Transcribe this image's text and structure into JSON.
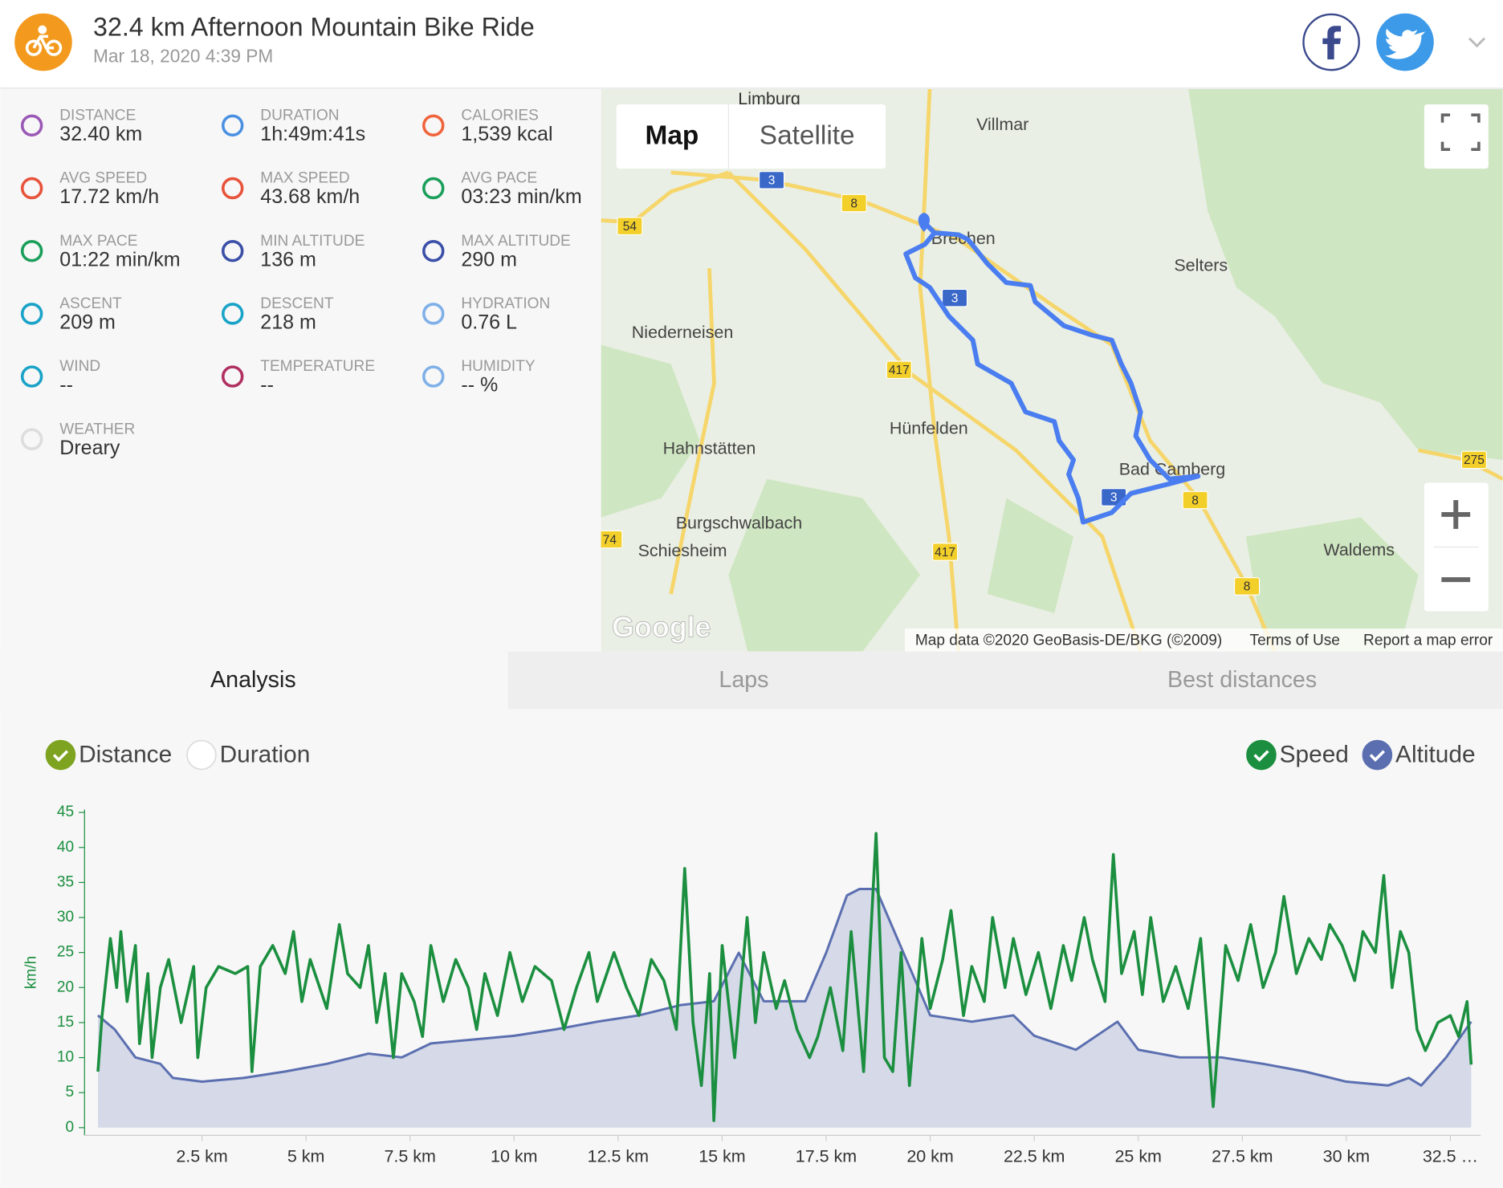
{
  "header": {
    "title": "32.4 km Afternoon Mountain Bike Ride",
    "date": "Mar 18, 2020 4:39 PM"
  },
  "stats": [
    {
      "label": "DISTANCE",
      "value": "32.40 km"
    },
    {
      "label": "DURATION",
      "value": "1h:49m:41s"
    },
    {
      "label": "CALORIES",
      "value": "1,539 kcal"
    },
    {
      "label": "AVG SPEED",
      "value": "17.72 km/h"
    },
    {
      "label": "MAX SPEED",
      "value": "43.68 km/h"
    },
    {
      "label": "AVG PACE",
      "value": "03:23 min/km"
    },
    {
      "label": "MAX PACE",
      "value": "01:22 min/km"
    },
    {
      "label": "MIN ALTITUDE",
      "value": "136 m"
    },
    {
      "label": "MAX ALTITUDE",
      "value": "290 m"
    },
    {
      "label": "ASCENT",
      "value": "209 m"
    },
    {
      "label": "DESCENT",
      "value": "218 m"
    },
    {
      "label": "HYDRATION",
      "value": "0.76 L"
    },
    {
      "label": "WIND",
      "value": "--"
    },
    {
      "label": "TEMPERATURE",
      "value": "--"
    },
    {
      "label": "HUMIDITY",
      "value": "-- %"
    },
    {
      "label": "WEATHER",
      "value": "Dreary"
    }
  ],
  "map": {
    "modes": [
      "Map",
      "Satellite"
    ],
    "places": [
      "Limburg",
      "Villmar",
      "Brechen",
      "Selters",
      "Niederneisen",
      "Hünfelden",
      "Hahnstätten",
      "Bad Camberg",
      "Burgschwalbach",
      "Schiesheim",
      "Waldems"
    ],
    "roads": [
      "3",
      "8",
      "54",
      "3",
      "417",
      "3",
      "8",
      "417",
      "74",
      "275",
      "8"
    ],
    "logo": "Google",
    "attribution": "Map data ©2020 GeoBasis-DE/BKG (©2009)",
    "terms": "Terms of Use",
    "report": "Report a map error"
  },
  "tabs": [
    "Analysis",
    "Laps",
    "Best distances"
  ],
  "chart_data": {
    "type": "line",
    "x_modes": [
      "Distance",
      "Duration"
    ],
    "ylabel": "km/h",
    "xlim": [
      0,
      33
    ],
    "xticks": [
      {
        "value": 2.5,
        "label": "2.5 km"
      },
      {
        "value": 5,
        "label": "5 km"
      },
      {
        "value": 7.5,
        "label": "7.5 km"
      },
      {
        "value": 10,
        "label": "10 km"
      },
      {
        "value": 12.5,
        "label": "12.5 km"
      },
      {
        "value": 15,
        "label": "15 km"
      },
      {
        "value": 17.5,
        "label": "17.5 km"
      },
      {
        "value": 20,
        "label": "20 km"
      },
      {
        "value": 22.5,
        "label": "22.5 km"
      },
      {
        "value": 25,
        "label": "25 km"
      },
      {
        "value": 27.5,
        "label": "27.5 km"
      },
      {
        "value": 30,
        "label": "30 km"
      },
      {
        "value": 32.5,
        "label": "32.5 …"
      }
    ],
    "ylim": [
      0,
      45
    ],
    "yticks": [
      0,
      5,
      10,
      15,
      20,
      25,
      30,
      35,
      40,
      45
    ],
    "y2lim": [
      103,
      350
    ],
    "series": [
      {
        "name": "Speed",
        "color": "#1b8f3f",
        "x": [
          0,
          0.1,
          0.3,
          0.45,
          0.55,
          0.7,
          0.9,
          1.0,
          1.2,
          1.3,
          1.5,
          1.7,
          2.0,
          2.3,
          2.4,
          2.6,
          2.9,
          3.3,
          3.6,
          3.7,
          3.9,
          4.2,
          4.5,
          4.7,
          4.9,
          5.1,
          5.5,
          5.8,
          6.0,
          6.3,
          6.5,
          6.7,
          6.9,
          7.1,
          7.3,
          7.6,
          7.8,
          8.0,
          8.3,
          8.6,
          8.9,
          9.1,
          9.3,
          9.6,
          9.9,
          10.2,
          10.5,
          10.9,
          11.2,
          11.5,
          11.8,
          12.0,
          12.4,
          12.7,
          13.0,
          13.3,
          13.6,
          13.9,
          14.1,
          14.3,
          14.5,
          14.7,
          14.8,
          15.0,
          15.3,
          15.6,
          15.8,
          16.0,
          16.3,
          16.5,
          16.8,
          17.1,
          17.3,
          17.6,
          17.9,
          18.1,
          18.4,
          18.7,
          18.9,
          19.1,
          19.3,
          19.5,
          19.8,
          20.0,
          20.3,
          20.5,
          20.8,
          21.0,
          21.3,
          21.5,
          21.8,
          22.0,
          22.3,
          22.6,
          22.9,
          23.2,
          23.4,
          23.7,
          23.9,
          24.2,
          24.4,
          24.6,
          24.9,
          25.1,
          25.3,
          25.6,
          25.9,
          26.2,
          26.5,
          26.8,
          27.1,
          27.4,
          27.7,
          28.0,
          28.3,
          28.5,
          28.8,
          29.1,
          29.4,
          29.6,
          29.9,
          30.2,
          30.4,
          30.7,
          30.9,
          31.1,
          31.3,
          31.5,
          31.7,
          31.9,
          32.2,
          32.5,
          32.7,
          32.9,
          33.0
        ],
        "values": [
          8,
          16,
          27,
          20,
          28,
          18,
          26,
          12,
          22,
          10,
          20,
          24,
          15,
          23,
          10,
          20,
          23,
          22,
          23,
          8,
          23,
          26,
          22,
          28,
          18,
          24,
          17,
          29,
          22,
          20,
          26,
          15,
          22,
          10,
          22,
          18,
          13,
          26,
          18,
          24,
          20,
          14,
          22,
          16,
          25,
          18,
          23,
          21,
          14,
          20,
          25,
          18,
          25,
          20,
          16,
          24,
          21,
          14,
          37,
          15,
          6,
          22,
          1,
          26,
          10,
          30,
          15,
          25,
          17,
          21,
          14,
          10,
          13,
          20,
          11,
          28,
          8,
          42,
          10,
          8,
          25,
          6,
          27,
          17,
          24,
          31,
          16,
          23,
          18,
          30,
          20,
          27,
          19,
          25,
          17,
          26,
          21,
          30,
          24,
          18,
          39,
          22,
          28,
          19,
          30,
          18,
          23,
          17,
          27,
          3,
          26,
          21,
          29,
          20,
          25,
          33,
          22,
          27,
          24,
          29,
          26,
          21,
          28,
          25,
          36,
          20,
          28,
          25,
          14,
          11,
          15,
          16,
          13,
          18,
          9
        ]
      },
      {
        "name": "Altitude",
        "color": "#5b6fb0",
        "fill": "#d5d9e8",
        "axis": "y2",
        "x": [
          0,
          0.4,
          0.9,
          1.5,
          1.8,
          2.5,
          3.5,
          4.5,
          5.5,
          6.5,
          7.3,
          8,
          9,
          10,
          11,
          12,
          13,
          14,
          14.8,
          15.4,
          16,
          17,
          17.5,
          18,
          18.3,
          18.7,
          19.2,
          20,
          21,
          22,
          22.5,
          23.5,
          24.5,
          25,
          26,
          27,
          28,
          29,
          30,
          31,
          31.5,
          31.8,
          32.4,
          33
        ],
        "values": [
          191,
          180,
          158,
          153,
          142,
          139,
          142,
          147,
          153,
          161,
          158,
          169,
          172,
          175,
          180,
          186,
          191,
          199,
          202,
          240,
          202,
          202,
          240,
          285,
          290,
          290,
          252,
          191,
          186,
          191,
          175,
          164,
          186,
          164,
          158,
          158,
          153,
          147,
          139,
          136,
          142,
          136,
          158,
          186
        ]
      }
    ]
  }
}
